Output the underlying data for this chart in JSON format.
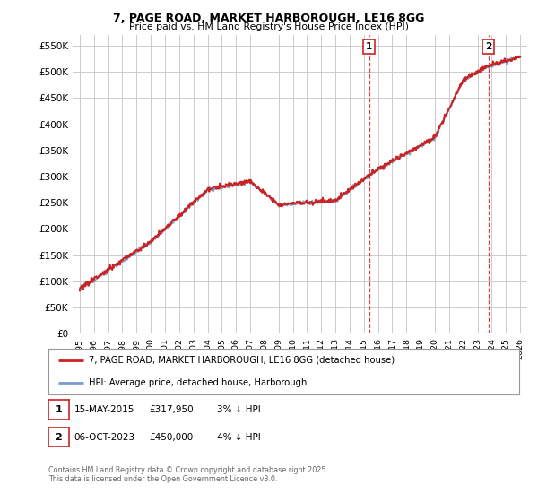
{
  "title_line1": "7, PAGE ROAD, MARKET HARBOROUGH, LE16 8GG",
  "title_line2": "Price paid vs. HM Land Registry's House Price Index (HPI)",
  "ytick_values": [
    0,
    50000,
    100000,
    150000,
    200000,
    250000,
    300000,
    350000,
    400000,
    450000,
    500000,
    550000
  ],
  "ylim": [
    0,
    570000
  ],
  "xlim_start": 1994.5,
  "xlim_end": 2026.5,
  "hpi_color": "#7799cc",
  "price_color": "#cc2222",
  "sale1_x": 2015.37,
  "sale1_y": 317950,
  "sale2_x": 2023.76,
  "sale2_y": 450000,
  "annotation1_label": "1",
  "annotation2_label": "2",
  "legend_label1": "7, PAGE ROAD, MARKET HARBOROUGH, LE16 8GG (detached house)",
  "legend_label2": "HPI: Average price, detached house, Harborough",
  "note1_label": "1",
  "note1_date": "15-MAY-2015",
  "note1_price": "£317,950",
  "note1_hpi": "3% ↓ HPI",
  "note2_label": "2",
  "note2_date": "06-OCT-2023",
  "note2_price": "£450,000",
  "note2_hpi": "4% ↓ HPI",
  "copyright_text": "Contains HM Land Registry data © Crown copyright and database right 2025.\nThis data is licensed under the Open Government Licence v3.0.",
  "background_color": "#ffffff",
  "grid_color": "#cccccc",
  "xtick_years": [
    1995,
    1996,
    1997,
    1998,
    1999,
    2000,
    2001,
    2002,
    2003,
    2004,
    2005,
    2006,
    2007,
    2008,
    2009,
    2010,
    2011,
    2012,
    2013,
    2014,
    2015,
    2016,
    2017,
    2018,
    2019,
    2020,
    2021,
    2022,
    2023,
    2024,
    2025,
    2026
  ]
}
